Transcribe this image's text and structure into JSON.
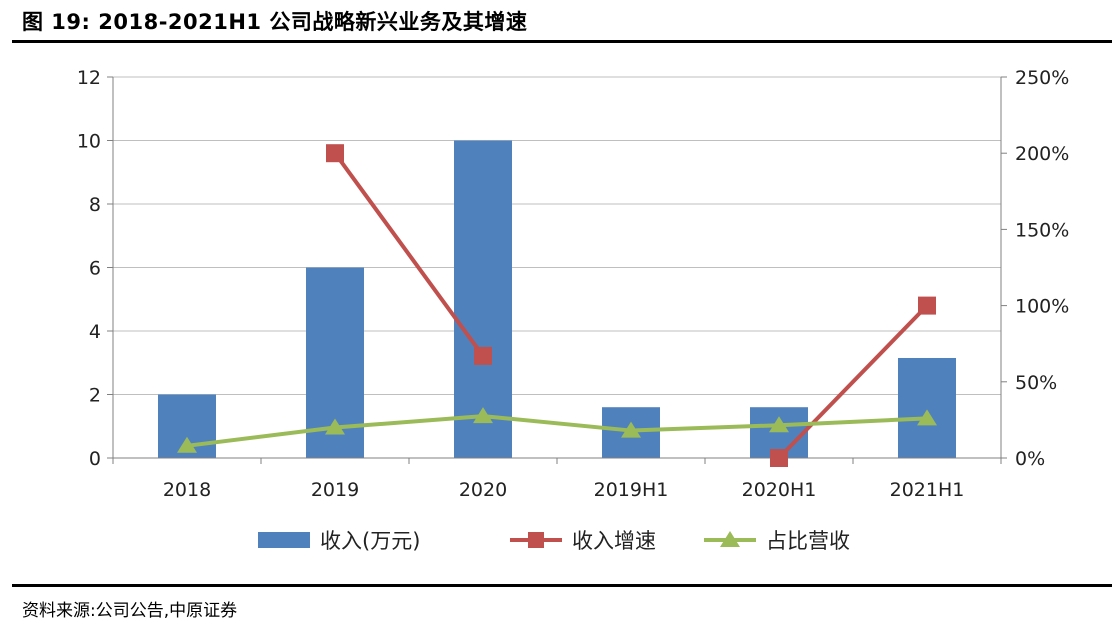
{
  "header": {
    "title": "图 19: 2018-2021H1 公司战略新兴业务及其增速"
  },
  "footer": {
    "source": "资料来源:公司公告,中原证券"
  },
  "chart_data": {
    "type": "bar",
    "categories": [
      "2018",
      "2019",
      "2020",
      "2019H1",
      "2020H1",
      "2021H1"
    ],
    "y_left": {
      "min": 0,
      "max": 12,
      "ticks": [
        "0",
        "2",
        "4",
        "6",
        "8",
        "10",
        "12"
      ]
    },
    "y_right": {
      "min": 0,
      "max": 250,
      "ticks": [
        "0%",
        "50%",
        "100%",
        "150%",
        "200%",
        "250%"
      ]
    },
    "grid": true,
    "legend_position": "bottom",
    "series": [
      {
        "name": "收入(万元)",
        "type": "bar",
        "axis": "left",
        "color": "#4F81BD",
        "values": [
          2,
          6,
          10,
          1.6,
          1.6,
          3.15
        ]
      },
      {
        "name": "收入增速",
        "type": "line",
        "axis": "right",
        "marker": "square",
        "color": "#C0504D",
        "values": [
          null,
          200,
          67,
          null,
          0,
          100
        ]
      },
      {
        "name": "占比营收",
        "type": "line",
        "axis": "right",
        "marker": "triangle",
        "color": "#9BBB59",
        "values": [
          8,
          20,
          27.5,
          18,
          21.5,
          26
        ]
      }
    ]
  }
}
